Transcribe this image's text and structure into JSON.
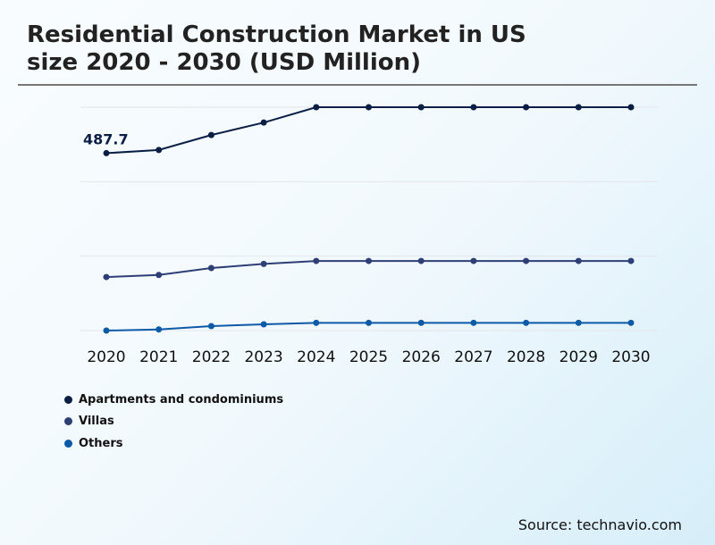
{
  "title_line1": "Residential Construction Market in US",
  "title_line2": "size 2020 - 2030 (USD Million)",
  "source": "Source: technavio.com",
  "chart_data": {
    "type": "line",
    "title": "Residential Construction Market in US size 2020 - 2030 (USD Million)",
    "categories": [
      "2020",
      "2021",
      "2022",
      "2023",
      "2024",
      "2025",
      "2026",
      "2027",
      "2028",
      "2029",
      "2030"
    ],
    "ylim": [
      0,
      614
    ],
    "grid": true,
    "legend": "bottom-left",
    "series": [
      {
        "name": "Apartments and condominiums",
        "color": "#0b1f45",
        "values": [
          487.7,
          496.5,
          537.5,
          571.8,
          614,
          614,
          614,
          614,
          614,
          614,
          614
        ],
        "data_label": "487.7"
      },
      {
        "name": "Villas",
        "color": "#2e3f75",
        "values": [
          147.2,
          152.9,
          171.8,
          183.3,
          191.4,
          191.4,
          191.4,
          191.4,
          191.4,
          191.4,
          191.4
        ]
      },
      {
        "name": "Others",
        "color": "#0d5aa7",
        "values": [
          0,
          3.2,
          12.3,
          17.2,
          21.3,
          21.3,
          21.3,
          21.3,
          21.3,
          21.3,
          21.3
        ]
      }
    ]
  }
}
